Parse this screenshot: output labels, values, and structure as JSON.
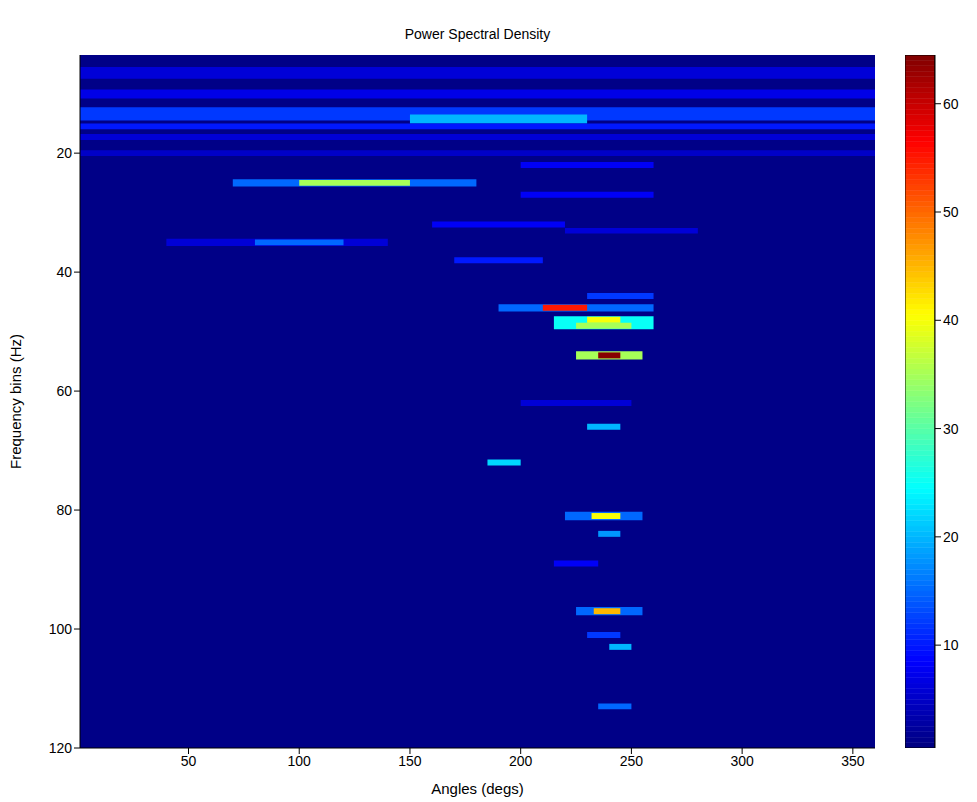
{
  "chart_data": {
    "type": "heatmap",
    "title": "Power Spectral Density",
    "x_label": "Angles (degs)",
    "y_label": "Frequency bins (Hz)",
    "xlim": [
      1,
      360
    ],
    "xticks": [
      50,
      100,
      150,
      200,
      250,
      300,
      350
    ],
    "ylim": [
      3.5,
      120
    ],
    "yticks": [
      20,
      40,
      60,
      80,
      100,
      120
    ],
    "colorbar": {
      "range": [
        0.5,
        64.5
      ],
      "ticks": [
        10,
        20,
        30,
        40,
        50,
        60
      ]
    },
    "cells": [
      {
        "x0": 1,
        "x1": 360,
        "y0": 3.5,
        "y1": 120,
        "value": 1
      },
      {
        "x0": 1,
        "x1": 360,
        "y0": 5.5,
        "y1": 7.5,
        "value": 6
      },
      {
        "x0": 1,
        "x1": 360,
        "y0": 9.3,
        "y1": 10.8,
        "value": 7
      },
      {
        "x0": 1,
        "x1": 360,
        "y0": 12.3,
        "y1": 14.5,
        "value": 12
      },
      {
        "x0": 150,
        "x1": 230,
        "y0": 13.5,
        "y1": 15,
        "value": 20
      },
      {
        "x0": 1,
        "x1": 360,
        "y0": 15,
        "y1": 16,
        "value": 10
      },
      {
        "x0": 1,
        "x1": 360,
        "y0": 16.8,
        "y1": 17.8,
        "value": 6
      },
      {
        "x0": 1,
        "x1": 360,
        "y0": 19.5,
        "y1": 20.5,
        "value": 5
      },
      {
        "x0": 200,
        "x1": 260,
        "y0": 21.5,
        "y1": 22.5,
        "value": 8
      },
      {
        "x0": 70,
        "x1": 180,
        "y0": 24.4,
        "y1": 25.6,
        "value": 15
      },
      {
        "x0": 100,
        "x1": 150,
        "y0": 24.5,
        "y1": 25.5,
        "value": 35
      },
      {
        "x0": 200,
        "x1": 260,
        "y0": 26.5,
        "y1": 27.5,
        "value": 8
      },
      {
        "x0": 160,
        "x1": 220,
        "y0": 31.5,
        "y1": 32.5,
        "value": 8
      },
      {
        "x0": 220,
        "x1": 280,
        "y0": 32.6,
        "y1": 33.5,
        "value": 6
      },
      {
        "x0": 40,
        "x1": 140,
        "y0": 34.4,
        "y1": 35.6,
        "value": 6
      },
      {
        "x0": 80,
        "x1": 120,
        "y0": 34.5,
        "y1": 35.5,
        "value": 15
      },
      {
        "x0": 170,
        "x1": 210,
        "y0": 37.5,
        "y1": 38.5,
        "value": 10
      },
      {
        "x0": 230,
        "x1": 260,
        "y0": 43.5,
        "y1": 44.5,
        "value": 12
      },
      {
        "x0": 190,
        "x1": 260,
        "y0": 45.4,
        "y1": 46.6,
        "value": 15
      },
      {
        "x0": 210,
        "x1": 230,
        "y0": 45.5,
        "y1": 46.5,
        "value": 55
      },
      {
        "x0": 215,
        "x1": 260,
        "y0": 47.4,
        "y1": 49.6,
        "value": 25
      },
      {
        "x0": 225,
        "x1": 250,
        "y0": 48.5,
        "y1": 49.5,
        "value": 35
      },
      {
        "x0": 230,
        "x1": 245,
        "y0": 47.5,
        "y1": 48.5,
        "value": 40
      },
      {
        "x0": 225,
        "x1": 255,
        "y0": 53.3,
        "y1": 54.7,
        "value": 35
      },
      {
        "x0": 235,
        "x1": 245,
        "y0": 53.5,
        "y1": 54.5,
        "value": 64
      },
      {
        "x0": 200,
        "x1": 250,
        "y0": 61.5,
        "y1": 62.5,
        "value": 6
      },
      {
        "x0": 230,
        "x1": 245,
        "y0": 65.5,
        "y1": 66.5,
        "value": 20
      },
      {
        "x0": 185,
        "x1": 200,
        "y0": 71.5,
        "y1": 72.5,
        "value": 22
      },
      {
        "x0": 220,
        "x1": 255,
        "y0": 80.3,
        "y1": 81.7,
        "value": 15
      },
      {
        "x0": 232,
        "x1": 245,
        "y0": 80.5,
        "y1": 81.5,
        "value": 40
      },
      {
        "x0": 235,
        "x1": 245,
        "y0": 83.5,
        "y1": 84.5,
        "value": 18
      },
      {
        "x0": 215,
        "x1": 235,
        "y0": 88.5,
        "y1": 89.5,
        "value": 8
      },
      {
        "x0": 225,
        "x1": 255,
        "y0": 96.3,
        "y1": 97.7,
        "value": 15
      },
      {
        "x0": 233,
        "x1": 245,
        "y0": 96.5,
        "y1": 97.5,
        "value": 45
      },
      {
        "x0": 230,
        "x1": 245,
        "y0": 100.5,
        "y1": 101.5,
        "value": 12
      },
      {
        "x0": 240,
        "x1": 250,
        "y0": 102.5,
        "y1": 103.5,
        "value": 20
      },
      {
        "x0": 235,
        "x1": 250,
        "y0": 112.5,
        "y1": 113.5,
        "value": 15
      }
    ]
  }
}
